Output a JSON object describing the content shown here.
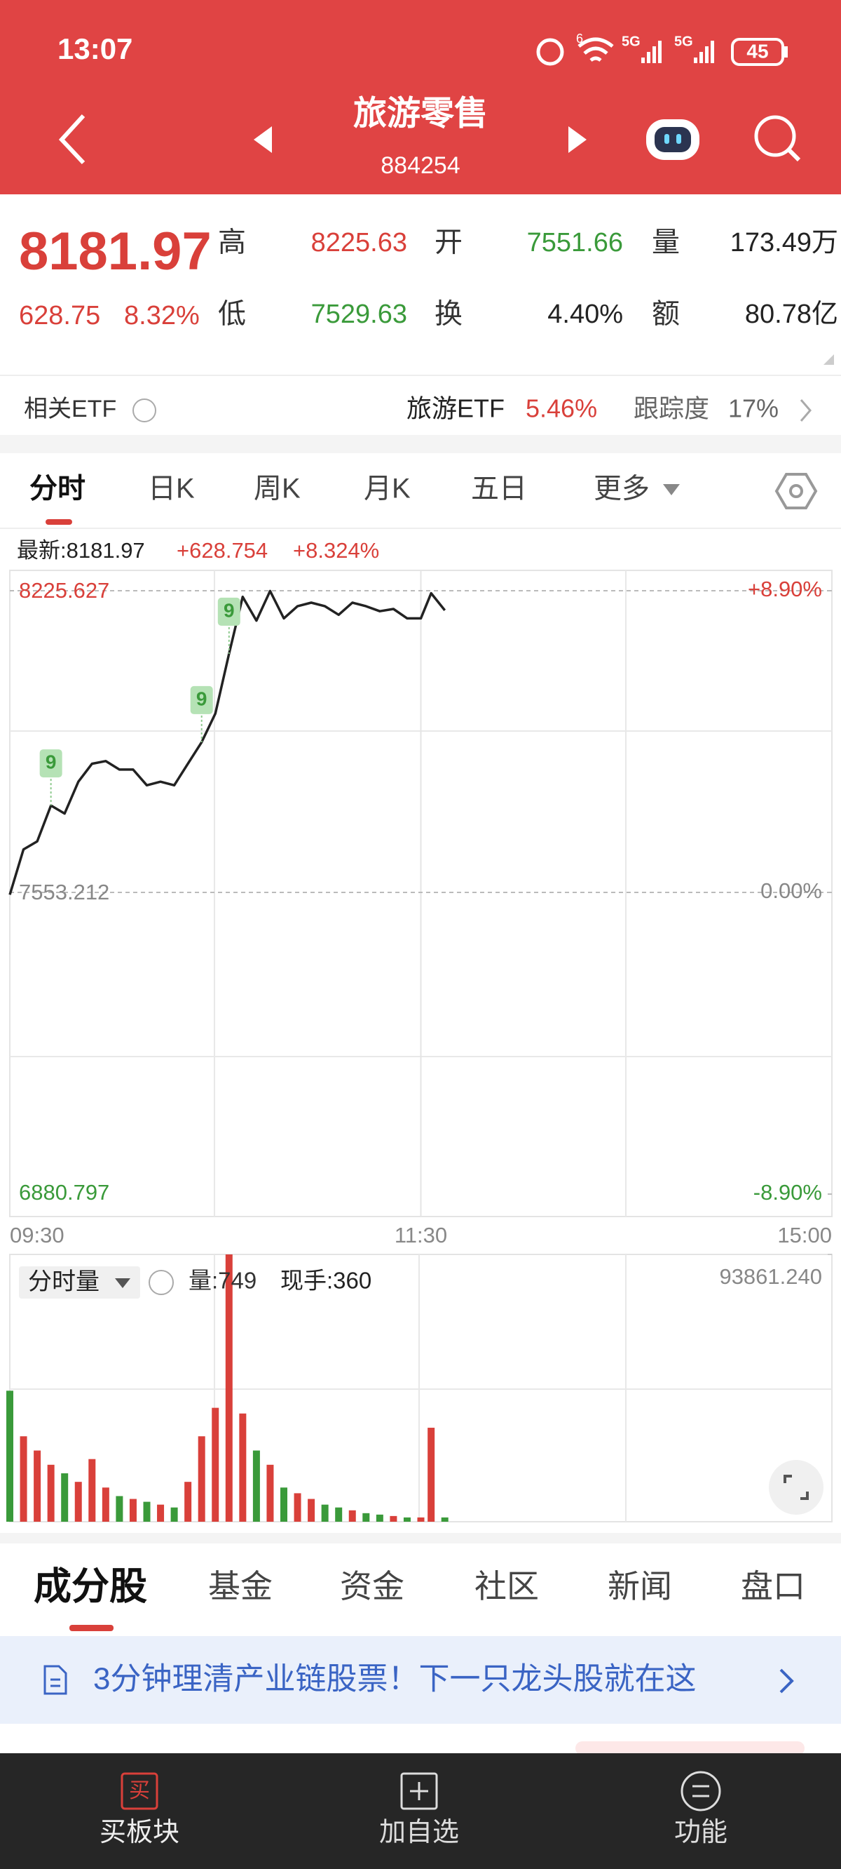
{
  "status_bar": {
    "time": "13:07",
    "wifi_label": "6",
    "network_labels": [
      "5G",
      "5G"
    ],
    "battery": "45"
  },
  "header": {
    "title": "旅游零售",
    "code": "884254"
  },
  "quote": {
    "price": "8181.97",
    "change": "628.75",
    "change_pct": "8.32%",
    "fields": [
      {
        "label": "高",
        "value": "8225.63"
      },
      {
        "label": "开",
        "value": "7551.66"
      },
      {
        "label": "量",
        "value": "173.49万"
      },
      {
        "label": "低",
        "value": "7529.63"
      },
      {
        "label": "换",
        "value": "4.40%"
      },
      {
        "label": "额",
        "value": "80.78亿"
      }
    ]
  },
  "etf": {
    "label": "相关ETF",
    "name": "旅游ETF",
    "change": "5.46%",
    "tracking_label": "跟踪度",
    "tracking": "17%"
  },
  "chart_tabs": [
    "分时",
    "日K",
    "周K",
    "月K",
    "五日",
    "更多"
  ],
  "chart_info": {
    "latest": "最新:8181.97",
    "change": "+628.754",
    "change_pct": "+8.324%"
  },
  "chart_data": [
    {
      "type": "line",
      "x": [
        "09:30",
        "09:34",
        "09:38",
        "09:42",
        "09:46",
        "09:50",
        "09:54",
        "09:58",
        "10:02",
        "10:06",
        "10:10",
        "10:14",
        "10:18",
        "10:22",
        "10:26",
        "10:30",
        "10:34",
        "10:38",
        "10:42",
        "10:46",
        "10:50",
        "10:54",
        "10:58",
        "11:02",
        "11:06",
        "11:10",
        "11:14",
        "11:18",
        "11:22",
        "11:26",
        "11:30",
        "13:03",
        "13:07"
      ],
      "series": [
        {
          "color": "#222222",
          "values": [
            7548,
            7649,
            7667,
            7747,
            7729,
            7800,
            7840,
            7846,
            7827,
            7827,
            7792,
            7800,
            7792,
            7840,
            7888,
            7952,
            8085,
            8212,
            8159,
            8225,
            8164,
            8191,
            8199,
            8191,
            8172,
            8199,
            8191,
            8180,
            8185,
            8164,
            8164,
            8220,
            8182
          ]
        }
      ],
      "ylim": [
        6880.797,
        8225.627
      ],
      "yticks": [
        8225.627,
        7553.212,
        6880.797
      ],
      "y2lim": [
        -8.9,
        8.9
      ],
      "y2ticks": [
        {
          "value": 8.9,
          "label": "+8.90%"
        },
        {
          "value": 0,
          "label": "0.00%"
        },
        {
          "value": -8.9,
          "label": "-8.90%"
        }
      ],
      "xticks": [
        "09:30",
        "11:30",
        "15:00"
      ],
      "signals": [
        {
          "x": "09:42",
          "value": 9
        },
        {
          "x": "10:26",
          "value": 9
        },
        {
          "x": "10:34",
          "value": 9
        }
      ],
      "grid": true
    },
    {
      "type": "bar",
      "title": "分时量",
      "info": [
        "量:749",
        "现手:360"
      ],
      "x": [
        "09:30",
        "09:34",
        "09:38",
        "09:42",
        "09:46",
        "09:50",
        "09:54",
        "09:58",
        "10:02",
        "10:06",
        "10:10",
        "10:14",
        "10:18",
        "10:22",
        "10:26",
        "10:30",
        "10:34",
        "10:38",
        "10:42",
        "10:46",
        "10:50",
        "10:54",
        "10:58",
        "11:02",
        "11:06",
        "11:10",
        "11:14",
        "11:18",
        "11:22",
        "11:26",
        "11:30",
        "13:03",
        "13:07"
      ],
      "values": [
        46000,
        30000,
        25000,
        20000,
        17000,
        14000,
        22000,
        12000,
        9000,
        8000,
        7000,
        6000,
        5000,
        14000,
        30000,
        40000,
        93861.24,
        38000,
        25000,
        20000,
        12000,
        10000,
        8000,
        6000,
        5000,
        4000,
        3000,
        2500,
        2000,
        1500,
        1500,
        33000,
        1500
      ],
      "ylim": [
        0,
        93861.24
      ],
      "yticks": [
        {
          "value": 93861.24,
          "label": "93861.240"
        }
      ],
      "up_color": "#d9403a",
      "down_color": "#3a9a3a"
    }
  ],
  "content_tabs": [
    "成分股",
    "基金",
    "资金",
    "社区",
    "新闻",
    "盘口"
  ],
  "banner": "3分钟理清产业链股票！下一只龙头股就在这",
  "nav": {
    "buy_icon": "买",
    "items": [
      "买板块",
      "加自选",
      "功能"
    ]
  }
}
